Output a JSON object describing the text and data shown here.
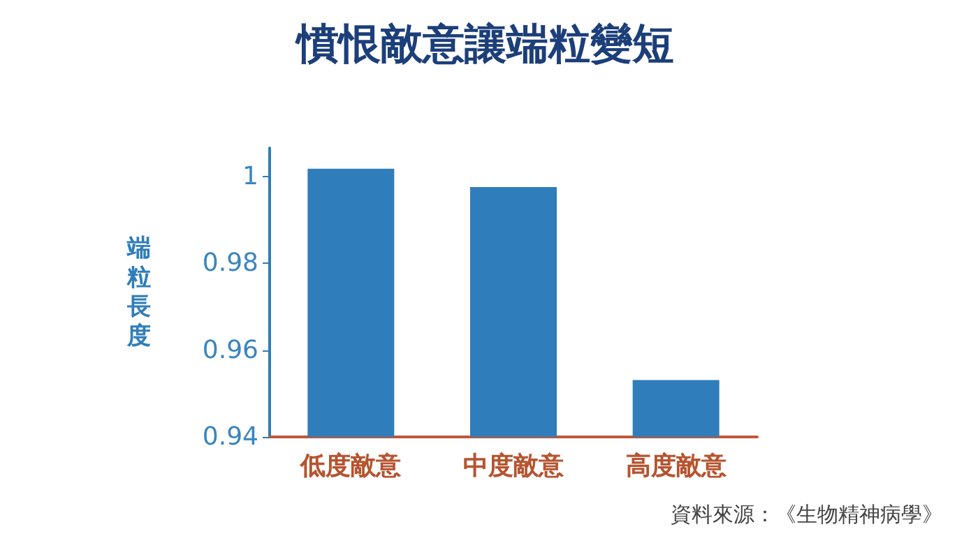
{
  "chart_data": {
    "type": "bar",
    "title": "憤恨敵意讓端粒變短",
    "ylabel": "端粒長度",
    "categories": [
      "低度敵意",
      "中度敵意",
      "高度敵意"
    ],
    "values": [
      1.0018,
      0.9976,
      0.9531
    ],
    "color": "#2f7dba",
    "ylim": [
      0.94,
      1.0066
    ],
    "yticks": [
      0.94,
      0.96,
      0.98,
      1
    ],
    "grid": false,
    "annotations": [
      "資料來源：《生物精神病學》"
    ]
  }
}
